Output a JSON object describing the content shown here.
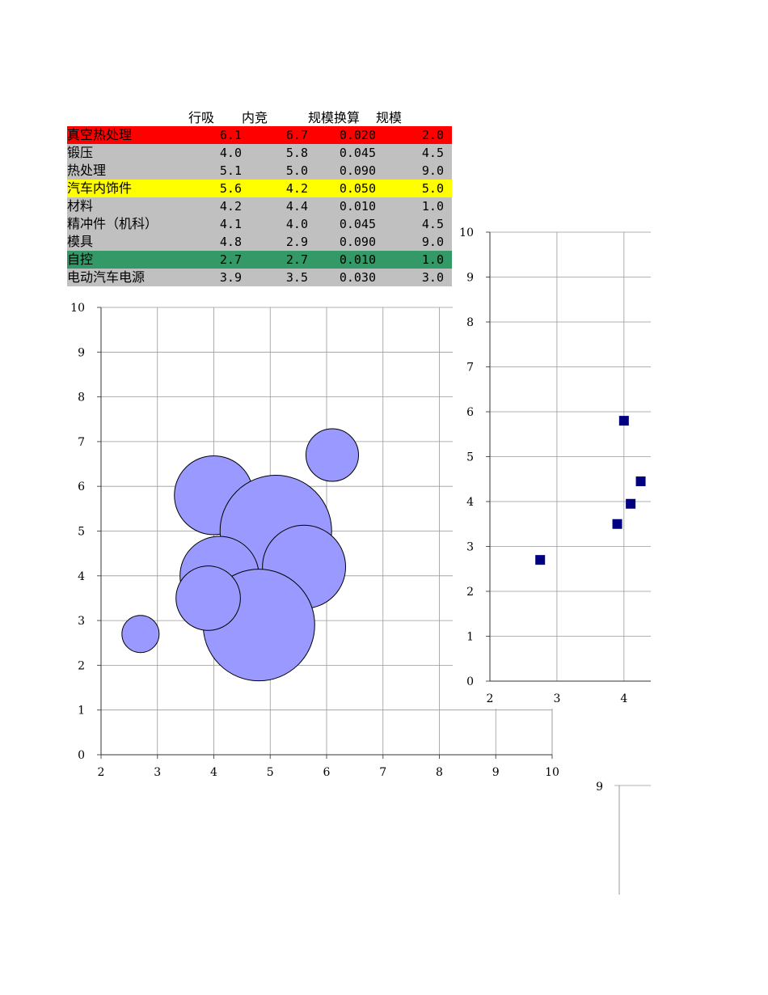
{
  "table": {
    "headers": [
      "",
      "行吸",
      "内竞",
      "规模换算",
      "规模"
    ],
    "rows": [
      {
        "name": "真空热处理",
        "v1": "6.1",
        "v2": "6.7",
        "v3": "0.020",
        "v4": "2.0",
        "bg": "#ff0000"
      },
      {
        "name": "锻压",
        "v1": "4.0",
        "v2": "5.8",
        "v3": "0.045",
        "v4": "4.5",
        "bg": "#c0c0c0"
      },
      {
        "name": "热处理",
        "v1": "5.1",
        "v2": "5.0",
        "v3": "0.090",
        "v4": "9.0",
        "bg": "#c0c0c0"
      },
      {
        "name": "汽车内饰件",
        "v1": "5.6",
        "v2": "4.2",
        "v3": "0.050",
        "v4": "5.0",
        "bg": "#ffff00"
      },
      {
        "name": "材料",
        "v1": "4.2",
        "v2": "4.4",
        "v3": "0.010",
        "v4": "1.0",
        "bg": "#c0c0c0"
      },
      {
        "name": "精冲件（机科）",
        "v1": "4.1",
        "v2": "4.0",
        "v3": "0.045",
        "v4": "4.5",
        "bg": "#c0c0c0"
      },
      {
        "name": "模具",
        "v1": "4.8",
        "v2": "2.9",
        "v3": "0.090",
        "v4": "9.0",
        "bg": "#c0c0c0"
      },
      {
        "name": "自控",
        "v1": "2.7",
        "v2": "2.7",
        "v3": "0.010",
        "v4": "1.0",
        "bg": "#339966"
      },
      {
        "name": "电动汽车电源",
        "v1": "3.9",
        "v2": "3.5",
        "v3": "0.030",
        "v4": "3.0",
        "bg": "#c0c0c0"
      }
    ]
  },
  "chart_data": [
    {
      "type": "bubble",
      "title": "",
      "xlabel": "",
      "ylabel": "",
      "xlim": [
        2,
        10
      ],
      "ylim": [
        0,
        10
      ],
      "x_ticks": [
        "2",
        "3",
        "4",
        "5",
        "6",
        "7",
        "8",
        "9",
        "10"
      ],
      "y_ticks": [
        "0",
        "1",
        "2",
        "3",
        "4",
        "5",
        "6",
        "7",
        "8",
        "9",
        "10"
      ],
      "grid": true,
      "bubble_color": "#9999ff",
      "points": [
        {
          "x": 6.1,
          "y": 6.7,
          "size": 2.0
        },
        {
          "x": 4.0,
          "y": 5.8,
          "size": 4.5
        },
        {
          "x": 5.1,
          "y": 5.0,
          "size": 9.0
        },
        {
          "x": 5.6,
          "y": 4.2,
          "size": 5.0
        },
        {
          "x": 4.2,
          "y": 4.4,
          "size": 1.0
        },
        {
          "x": 4.1,
          "y": 4.0,
          "size": 4.5
        },
        {
          "x": 4.8,
          "y": 2.9,
          "size": 9.0
        },
        {
          "x": 2.7,
          "y": 2.7,
          "size": 1.0
        },
        {
          "x": 3.9,
          "y": 3.5,
          "size": 3.0
        }
      ]
    },
    {
      "type": "scatter",
      "title": "",
      "xlabel": "",
      "ylabel": "",
      "xlim": [
        2,
        4.4
      ],
      "ylim": [
        0,
        10
      ],
      "x_ticks": [
        "2",
        "3",
        "4"
      ],
      "y_ticks": [
        "0",
        "1",
        "2",
        "3",
        "4",
        "5",
        "6",
        "7",
        "8",
        "9",
        "10"
      ],
      "grid": true,
      "marker_color": "#000080",
      "points": [
        {
          "x": 4.0,
          "y": 5.8
        },
        {
          "x": 4.25,
          "y": 4.45
        },
        {
          "x": 4.1,
          "y": 3.95
        },
        {
          "x": 3.9,
          "y": 3.5
        },
        {
          "x": 2.75,
          "y": 2.7
        }
      ]
    },
    {
      "type": "line",
      "title": "",
      "y_ticks": [
        "9"
      ],
      "grid": true
    }
  ]
}
